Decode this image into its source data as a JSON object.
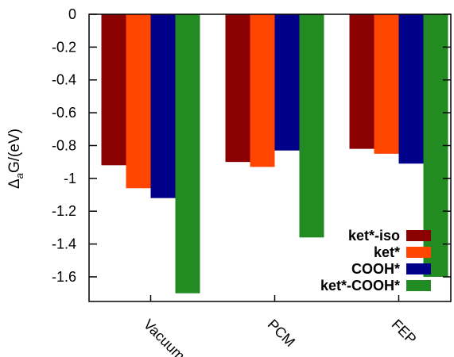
{
  "chart_data": {
    "type": "bar",
    "categories": [
      "Vacuum",
      "PCM",
      "FEP"
    ],
    "series": [
      {
        "name": "ket*-iso",
        "color": "#8b0000",
        "values": [
          -0.92,
          -0.9,
          -0.82
        ]
      },
      {
        "name": "ket*",
        "color": "#ff4500",
        "values": [
          -1.06,
          -0.93,
          -0.85
        ]
      },
      {
        "name": "COOH*",
        "color": "#00008b",
        "values": [
          -1.12,
          -0.83,
          -0.91
        ]
      },
      {
        "name": "ket*-COOH*",
        "color": "#228b22",
        "values": [
          -1.7,
          -1.36,
          -1.6
        ]
      }
    ],
    "title": "",
    "xlabel": "",
    "ylabel": "Δ",
    "ylabel_subscript": "a",
    "ylabel_suffix": "G/(eV)",
    "ylim": [
      -1.75,
      0
    ],
    "yticks": [
      0,
      -0.2,
      -0.4,
      -0.6,
      -0.8,
      -1,
      -1.2,
      -1.4,
      -1.6
    ],
    "ytick_labels": [
      "0",
      "-0.2",
      "-0.4",
      "-0.6",
      "-0.8",
      "-1",
      "-1.2",
      "-1.4",
      "-1.6"
    ],
    "grid": false,
    "legend_position": "bottom-right"
  }
}
